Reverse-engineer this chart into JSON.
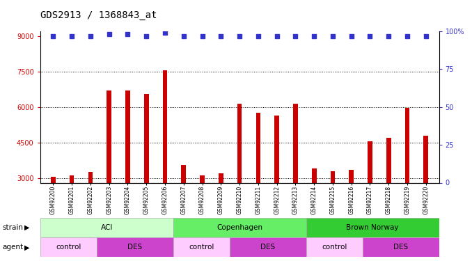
{
  "title": "GDS2913 / 1368843_at",
  "samples": [
    "GSM92200",
    "GSM92201",
    "GSM92202",
    "GSM92203",
    "GSM92204",
    "GSM92205",
    "GSM92206",
    "GSM92207",
    "GSM92208",
    "GSM92209",
    "GSM92210",
    "GSM92211",
    "GSM92212",
    "GSM92213",
    "GSM92214",
    "GSM92215",
    "GSM92216",
    "GSM92217",
    "GSM92218",
    "GSM92219",
    "GSM92220"
  ],
  "counts": [
    3050,
    3100,
    3250,
    6700,
    6700,
    6550,
    7550,
    3550,
    3100,
    3200,
    6150,
    5750,
    5650,
    6150,
    3400,
    3300,
    3350,
    4550,
    4700,
    5950,
    4800
  ],
  "percentile": [
    97,
    97,
    97,
    98,
    98,
    97,
    99,
    97,
    97,
    97,
    97,
    97,
    97,
    97,
    97,
    97,
    97,
    97,
    97,
    97,
    97
  ],
  "bar_color": "#cc0000",
  "dot_color": "#3333cc",
  "ylim_left": [
    2800,
    9200
  ],
  "ylim_right": [
    0,
    100
  ],
  "yticks_left": [
    3000,
    4500,
    6000,
    7500,
    9000
  ],
  "yticks_right": [
    0,
    25,
    50,
    75,
    100
  ],
  "grid_values": [
    3000,
    4500,
    6000,
    7500
  ],
  "strain_groups": [
    {
      "label": "ACI",
      "start": 0,
      "end": 6,
      "color": "#ccffcc"
    },
    {
      "label": "Copenhagen",
      "start": 7,
      "end": 13,
      "color": "#66ee66"
    },
    {
      "label": "Brown Norway",
      "start": 14,
      "end": 20,
      "color": "#33cc33"
    }
  ],
  "agent_groups": [
    {
      "label": "control",
      "start": 0,
      "end": 2,
      "color": "#ffccff"
    },
    {
      "label": "DES",
      "start": 3,
      "end": 6,
      "color": "#cc44cc"
    },
    {
      "label": "control",
      "start": 7,
      "end": 9,
      "color": "#ffccff"
    },
    {
      "label": "DES",
      "start": 10,
      "end": 13,
      "color": "#cc44cc"
    },
    {
      "label": "control",
      "start": 14,
      "end": 16,
      "color": "#ffccff"
    },
    {
      "label": "DES",
      "start": 17,
      "end": 20,
      "color": "#cc44cc"
    }
  ],
  "strain_label": "strain",
  "agent_label": "agent",
  "legend_count_color": "#cc0000",
  "legend_dot_color": "#3333cc",
  "bg_color": "#ffffff",
  "tick_color_left": "#cc0000",
  "tick_color_right": "#3333cc",
  "title_fontsize": 10,
  "bar_width": 0.25
}
